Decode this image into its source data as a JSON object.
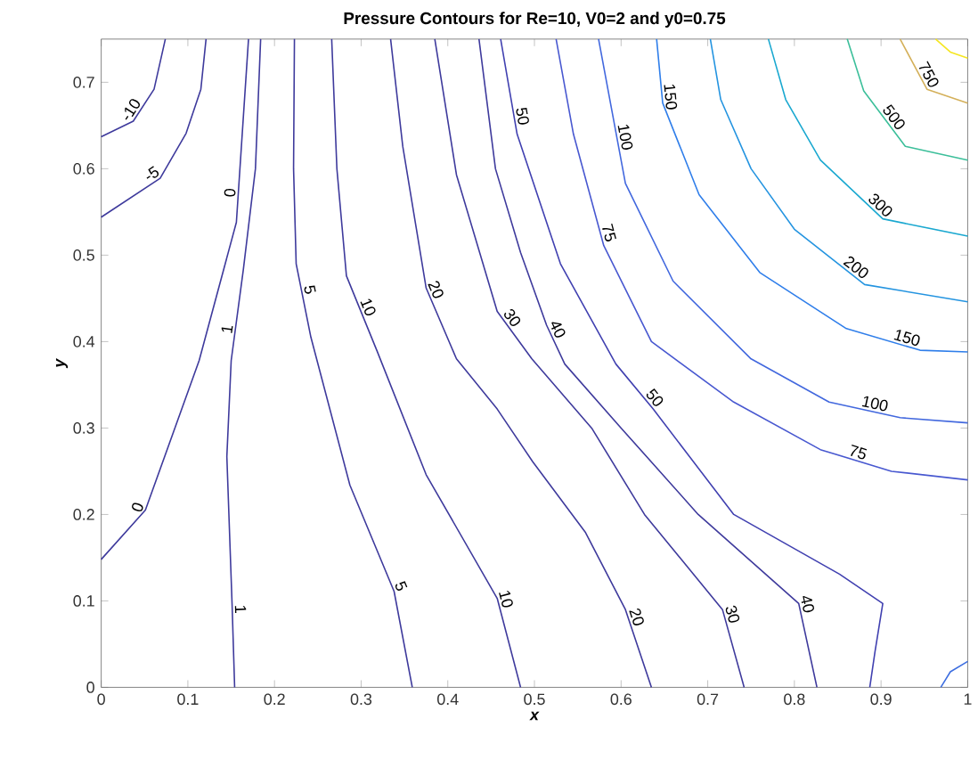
{
  "chart_data": {
    "type": "line",
    "title": "Pressure Contours for Re=10, V0=2 and y0=0.75",
    "xlabel": "x",
    "ylabel": "y",
    "xlim": [
      0,
      1
    ],
    "ylim": [
      0,
      0.75
    ],
    "xticks": [
      0,
      0.1,
      0.2,
      0.3,
      0.4,
      0.5,
      0.6,
      0.7,
      0.8,
      0.9,
      1
    ],
    "yticks": [
      0,
      0.1,
      0.2,
      0.3,
      0.4,
      0.5,
      0.6,
      0.7
    ],
    "marker": "none",
    "line_style": "solid",
    "series": [
      {
        "name": "-10",
        "color": "#3e3a9c",
        "x": [
          0,
          0.037,
          0.061,
          0.074
        ],
        "values": [
          0.637,
          0.655,
          0.692,
          0.75
        ]
      },
      {
        "name": "-5",
        "color": "#3e3a9c",
        "x": [
          0,
          0.068,
          0.098,
          0.115,
          0.121
        ],
        "values": [
          0.544,
          0.589,
          0.641,
          0.692,
          0.75
        ]
      },
      {
        "name": "0",
        "color": "#3e3a9c",
        "x": [
          0,
          0.051,
          0.113,
          0.156,
          0.17
        ],
        "values": [
          0.148,
          0.205,
          0.378,
          0.538,
          0.75
        ]
      },
      {
        "name": "1",
        "color": "#3e3a9c",
        "x": [
          0.154,
          0.151,
          0.145,
          0.15,
          0.164,
          0.178,
          0.184
        ],
        "values": [
          0,
          0.097,
          0.267,
          0.378,
          0.483,
          0.6,
          0.75
        ]
      },
      {
        "name": "5",
        "color": "#3e3a9c",
        "x": [
          0.359,
          0.338,
          0.287,
          0.242,
          0.225,
          0.222,
          0.223
        ],
        "values": [
          0,
          0.111,
          0.234,
          0.405,
          0.49,
          0.6,
          0.75
        ]
      },
      {
        "name": "10",
        "color": "#3e3a9c",
        "x": [
          0.484,
          0.457,
          0.375,
          0.318,
          0.283,
          0.272,
          0.266
        ],
        "values": [
          0,
          0.103,
          0.246,
          0.39,
          0.476,
          0.6,
          0.75
        ]
      },
      {
        "name": "20",
        "color": "#3e3a9c",
        "x": [
          0.635,
          0.605,
          0.559,
          0.498,
          0.457,
          0.41,
          0.375,
          0.348,
          0.334
        ],
        "values": [
          0,
          0.09,
          0.179,
          0.261,
          0.322,
          0.38,
          0.462,
          0.626,
          0.75
        ]
      },
      {
        "name": "30",
        "color": "#3e3a9c",
        "x": [
          0.742,
          0.717,
          0.627,
          0.566,
          0.497,
          0.457,
          0.41,
          0.385
        ],
        "values": [
          0,
          0.09,
          0.2,
          0.3,
          0.38,
          0.435,
          0.593,
          0.75
        ]
      },
      {
        "name": "40",
        "color": "#3e3a9c",
        "x": [
          0.826,
          0.805,
          0.689,
          0.6,
          0.535,
          0.514,
          0.484,
          0.455,
          0.436
        ],
        "values": [
          0,
          0.097,
          0.2,
          0.3,
          0.374,
          0.419,
          0.503,
          0.6,
          0.75
        ]
      },
      {
        "name": "50",
        "color": "#4040b0",
        "x": [
          0.887,
          0.893,
          0.902,
          0.852,
          0.73,
          0.637,
          0.594,
          0.53,
          0.48,
          0.461
        ],
        "values": [
          0,
          0.041,
          0.097,
          0.131,
          0.2,
          0.322,
          0.374,
          0.49,
          0.64,
          0.75
        ]
      },
      {
        "name": "75",
        "color": "#4858d0",
        "x": [
          0.525,
          0.545,
          0.58,
          0.635,
          0.73,
          0.83,
          0.912,
          1.0
        ],
        "values": [
          0.75,
          0.64,
          0.511,
          0.4,
          0.33,
          0.275,
          0.25,
          0.24
        ]
      },
      {
        "name": "100",
        "color": "#4268de",
        "x": [
          0.574,
          0.605,
          0.66,
          0.75,
          0.84,
          0.922,
          1.0
        ],
        "values": [
          0.75,
          0.583,
          0.47,
          0.38,
          0.33,
          0.312,
          0.306
        ]
      },
      {
        "name": "150",
        "color": "#2f7eea",
        "x": [
          0.641,
          0.648,
          0.69,
          0.76,
          0.86,
          0.945,
          1.0
        ],
        "values": [
          0.75,
          0.676,
          0.57,
          0.48,
          0.415,
          0.39,
          0.388
        ]
      },
      {
        "name": "200",
        "color": "#2494e0",
        "x": [
          0.703,
          0.715,
          0.75,
          0.8,
          0.881,
          1.0
        ],
        "values": [
          0.75,
          0.68,
          0.6,
          0.53,
          0.466,
          0.446
        ]
      },
      {
        "name": "300",
        "color": "#1aa8d0",
        "x": [
          0.77,
          0.79,
          0.83,
          0.902,
          1.0
        ],
        "values": [
          0.75,
          0.68,
          0.61,
          0.542,
          0.522
        ]
      },
      {
        "name": "500",
        "color": "#3cbf9a",
        "x": [
          0.861,
          0.88,
          0.928,
          1.0
        ],
        "values": [
          0.75,
          0.69,
          0.626,
          0.61
        ]
      },
      {
        "name": "750",
        "color": "#d4b05a",
        "x": [
          0.922,
          0.953,
          1.0
        ],
        "values": [
          0.75,
          0.692,
          0.676
        ]
      },
      {
        "color": "#f5e620",
        "x": [
          0.963,
          0.98,
          1.0
        ],
        "values": [
          0.75,
          0.735,
          0.728
        ]
      },
      {
        "color": "#3d6ee0",
        "x": [
          0.969,
          0.98,
          1.0
        ],
        "values": [
          0,
          0.018,
          0.03
        ]
      }
    ]
  }
}
